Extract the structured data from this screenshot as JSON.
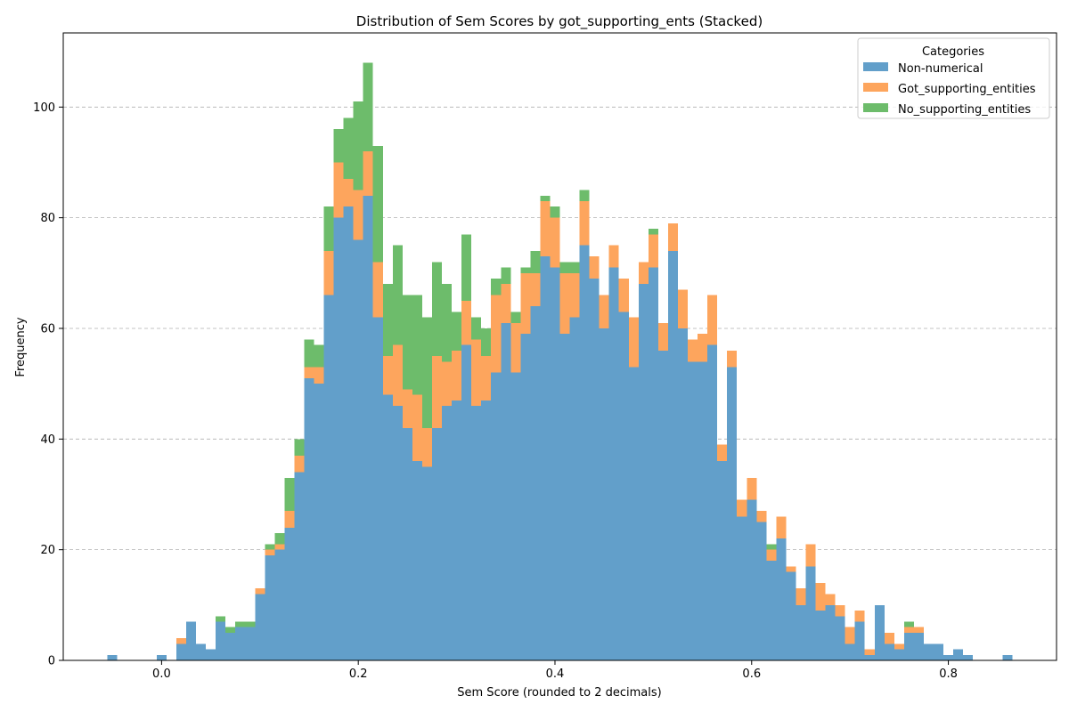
{
  "chart_data": {
    "type": "bar",
    "stacked": true,
    "title": "Distribution of Sem Scores by got_supporting_ents (Stacked)",
    "xlabel": "Sem Score (rounded to 2 decimals)",
    "ylabel": "Frequency",
    "xlim": [
      -0.1,
      0.91
    ],
    "ylim": [
      0,
      113.4
    ],
    "bin_width": 0.01,
    "xticks": [
      0.0,
      0.2,
      0.4,
      0.6,
      0.8
    ],
    "xtick_labels": [
      "0.0",
      "0.2",
      "0.4",
      "0.6",
      "0.8"
    ],
    "yticks": [
      0,
      20,
      40,
      60,
      80,
      100
    ],
    "ytick_labels": [
      "0",
      "20",
      "40",
      "60",
      "80",
      "100"
    ],
    "grid": "y-dashed",
    "legend": {
      "title": "Categories",
      "placement": "upper-right"
    },
    "x": [
      -0.05,
      -0.04,
      -0.03,
      -0.02,
      -0.01,
      0.0,
      0.01,
      0.02,
      0.03,
      0.04,
      0.05,
      0.06,
      0.07,
      0.08,
      0.09,
      0.1,
      0.11,
      0.12,
      0.13,
      0.14,
      0.15,
      0.16,
      0.17,
      0.18,
      0.19,
      0.2,
      0.21,
      0.22,
      0.23,
      0.24,
      0.25,
      0.26,
      0.27,
      0.28,
      0.29,
      0.3,
      0.31,
      0.32,
      0.33,
      0.34,
      0.35,
      0.36,
      0.37,
      0.38,
      0.39,
      0.4,
      0.41,
      0.42,
      0.43,
      0.44,
      0.45,
      0.46,
      0.47,
      0.48,
      0.49,
      0.5,
      0.51,
      0.52,
      0.53,
      0.54,
      0.55,
      0.56,
      0.57,
      0.58,
      0.59,
      0.6,
      0.61,
      0.62,
      0.63,
      0.64,
      0.65,
      0.66,
      0.67,
      0.68,
      0.69,
      0.7,
      0.71,
      0.72,
      0.73,
      0.74,
      0.75,
      0.76,
      0.77,
      0.78,
      0.79,
      0.8,
      0.81,
      0.82,
      0.83,
      0.84,
      0.85,
      0.86
    ],
    "series": [
      {
        "name": "Non-numerical",
        "color": "#629fca",
        "values": [
          1,
          0,
          0,
          0,
          0,
          1,
          0,
          3,
          7,
          3,
          2,
          7,
          5,
          6,
          6,
          12,
          19,
          20,
          24,
          34,
          51,
          50,
          66,
          80,
          82,
          76,
          84,
          62,
          48,
          46,
          42,
          36,
          35,
          42,
          46,
          47,
          57,
          46,
          47,
          52,
          61,
          52,
          59,
          64,
          73,
          71,
          59,
          62,
          75,
          69,
          60,
          71,
          63,
          53,
          68,
          71,
          56,
          74,
          60,
          54,
          54,
          57,
          36,
          53,
          26,
          29,
          25,
          18,
          22,
          16,
          10,
          17,
          9,
          10,
          8,
          3,
          7,
          1,
          10,
          3,
          2,
          5,
          5,
          3,
          3,
          1,
          2,
          1,
          0,
          0,
          0,
          1
        ]
      },
      {
        "name": "Got_supporting_entities",
        "color": "#fda55d",
        "values": [
          0,
          0,
          0,
          0,
          0,
          0,
          0,
          1,
          0,
          0,
          0,
          0,
          0,
          0,
          0,
          1,
          1,
          1,
          3,
          3,
          2,
          3,
          8,
          10,
          5,
          9,
          8,
          10,
          7,
          11,
          7,
          12,
          7,
          13,
          8,
          9,
          8,
          12,
          8,
          14,
          7,
          9,
          11,
          6,
          10,
          9,
          11,
          8,
          8,
          4,
          6,
          4,
          6,
          9,
          4,
          6,
          5,
          5,
          7,
          4,
          5,
          9,
          3,
          3,
          3,
          4,
          2,
          2,
          4,
          1,
          3,
          4,
          5,
          2,
          2,
          3,
          2,
          1,
          0,
          2,
          1,
          1,
          1,
          0,
          0,
          0,
          0,
          0,
          0,
          0,
          0,
          0
        ]
      },
      {
        "name": "No_supporting_entities",
        "color": "#6dbc6b",
        "values": [
          0,
          0,
          0,
          0,
          0,
          0,
          0,
          0,
          0,
          0,
          0,
          1,
          1,
          1,
          1,
          0,
          1,
          2,
          6,
          3,
          5,
          4,
          8,
          6,
          11,
          16,
          16,
          21,
          13,
          18,
          17,
          18,
          20,
          17,
          14,
          7,
          12,
          4,
          5,
          3,
          3,
          2,
          1,
          4,
          1,
          2,
          2,
          2,
          2,
          0,
          0,
          0,
          0,
          0,
          0,
          1,
          0,
          0,
          0,
          0,
          0,
          0,
          0,
          0,
          0,
          0,
          0,
          1,
          0,
          0,
          0,
          0,
          0,
          0,
          0,
          0,
          0,
          0,
          0,
          0,
          0,
          1,
          0,
          0,
          0,
          0,
          0,
          0,
          0,
          0,
          0,
          0
        ]
      }
    ]
  }
}
